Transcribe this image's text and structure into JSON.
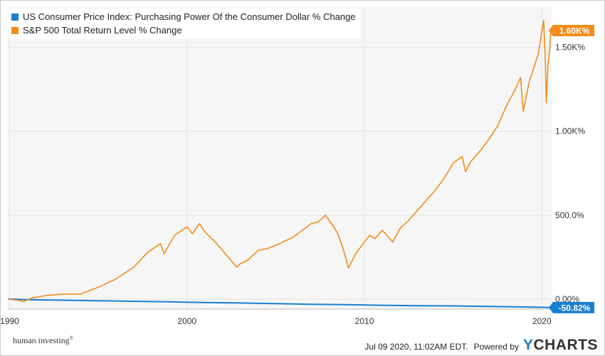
{
  "chart_data": {
    "type": "line",
    "series": [
      {
        "name": "US Consumer Price Index: Purchasing Power Of the Consumer Dollar % Change",
        "color": "#1a7fd1",
        "end_label": "-50.82%",
        "points": [
          [
            1989.9,
            0
          ],
          [
            1991,
            -3.5
          ],
          [
            1993,
            -7
          ],
          [
            1995,
            -10.5
          ],
          [
            1997,
            -13.5
          ],
          [
            1999,
            -17
          ],
          [
            2001,
            -20.5
          ],
          [
            2003,
            -23.5
          ],
          [
            2005,
            -27.5
          ],
          [
            2007,
            -31.5
          ],
          [
            2009,
            -33.5
          ],
          [
            2011,
            -37
          ],
          [
            2013,
            -39.5
          ],
          [
            2015,
            -41
          ],
          [
            2017,
            -44
          ],
          [
            2019,
            -47.5
          ],
          [
            2020.2,
            -49.5
          ],
          [
            2020.5,
            -50.82
          ]
        ]
      },
      {
        "name": "S&P 500 Total Return Level % Change",
        "color": "#f28c1a",
        "end_label": "1.60K%",
        "points": [
          [
            1989.9,
            0
          ],
          [
            1990.5,
            -8
          ],
          [
            1990.8,
            -15
          ],
          [
            1991.2,
            5
          ],
          [
            1992,
            20
          ],
          [
            1993,
            30
          ],
          [
            1994,
            30
          ],
          [
            1995,
            70
          ],
          [
            1996,
            120
          ],
          [
            1997,
            190
          ],
          [
            1997.8,
            280
          ],
          [
            1998.5,
            330
          ],
          [
            1998.7,
            270
          ],
          [
            1999.3,
            380
          ],
          [
            2000,
            430
          ],
          [
            2000.3,
            390
          ],
          [
            2000.7,
            450
          ],
          [
            2001,
            400
          ],
          [
            2001.5,
            350
          ],
          [
            2002,
            290
          ],
          [
            2002.4,
            240
          ],
          [
            2002.8,
            190
          ],
          [
            2003,
            210
          ],
          [
            2003.4,
            230
          ],
          [
            2004,
            290
          ],
          [
            2004.5,
            300
          ],
          [
            2005,
            320
          ],
          [
            2006,
            370
          ],
          [
            2007,
            450
          ],
          [
            2007.4,
            460
          ],
          [
            2007.8,
            500
          ],
          [
            2008.2,
            440
          ],
          [
            2008.5,
            390
          ],
          [
            2008.8,
            300
          ],
          [
            2009.1,
            185
          ],
          [
            2009.5,
            270
          ],
          [
            2010,
            340
          ],
          [
            2010.3,
            380
          ],
          [
            2010.6,
            360
          ],
          [
            2011,
            410
          ],
          [
            2011.6,
            340
          ],
          [
            2012,
            420
          ],
          [
            2012.5,
            470
          ],
          [
            2013,
            530
          ],
          [
            2013.5,
            590
          ],
          [
            2014,
            650
          ],
          [
            2014.5,
            720
          ],
          [
            2015,
            810
          ],
          [
            2015.5,
            850
          ],
          [
            2015.7,
            760
          ],
          [
            2016,
            820
          ],
          [
            2016.5,
            880
          ],
          [
            2017,
            950
          ],
          [
            2017.5,
            1030
          ],
          [
            2018,
            1150
          ],
          [
            2018.5,
            1250
          ],
          [
            2018.8,
            1320
          ],
          [
            2018.95,
            1120
          ],
          [
            2019.3,
            1300
          ],
          [
            2019.8,
            1460
          ],
          [
            2020.1,
            1660
          ],
          [
            2020.2,
            1400
          ],
          [
            2020.25,
            1170
          ],
          [
            2020.35,
            1400
          ],
          [
            2020.45,
            1500
          ],
          [
            2020.5,
            1600
          ]
        ]
      }
    ],
    "x_ticks": [
      1990,
      2000,
      2010,
      2020
    ],
    "x_tick_labels": [
      "1990",
      "2000",
      "2010",
      "2020"
    ],
    "y_ticks": [
      0,
      500,
      1000,
      1500
    ],
    "y_tick_labels": [
      "0.00%",
      "500.0%",
      "1.00K%",
      "1.50K%"
    ],
    "xlim": [
      1989.9,
      2020.55
    ],
    "ylim": [
      -60,
      1740
    ],
    "y_axis_position": "right",
    "grid": true,
    "legend_position": "top-left"
  },
  "footer": {
    "left_text": "human investing",
    "left_mark": "®",
    "timestamp": "Jul 09 2020, 11:02AM EDT.",
    "powered_by": "Powered by",
    "brand_y": "Y",
    "brand_rest": "CHARTS"
  }
}
